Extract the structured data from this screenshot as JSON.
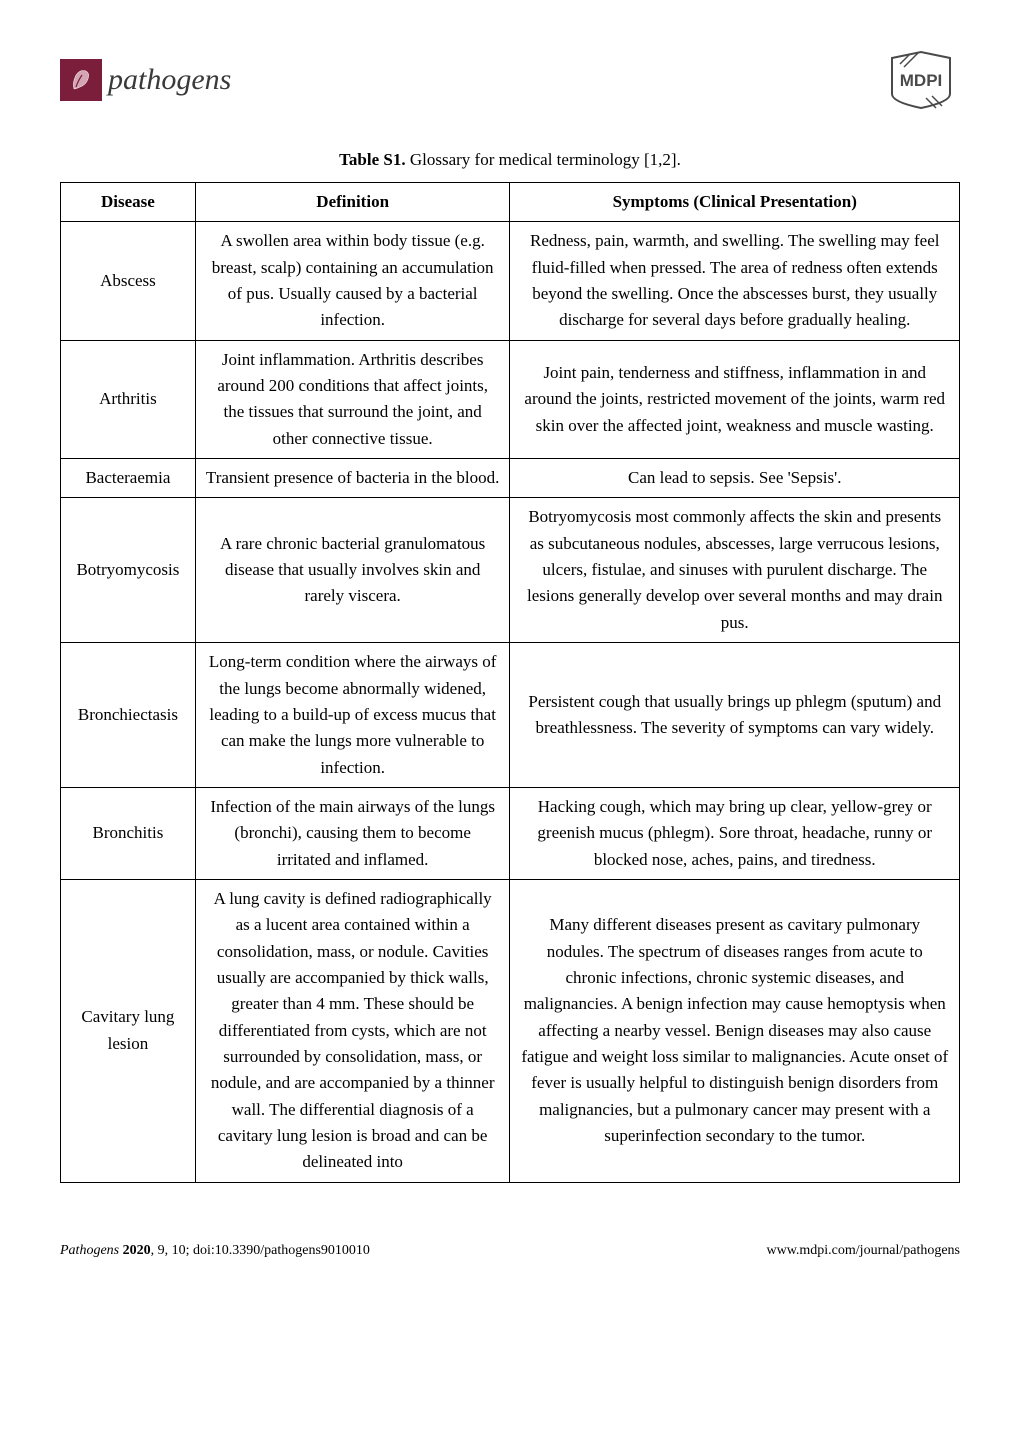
{
  "logos": {
    "left_text": "pathogens",
    "left_bg": "#7a1e3c",
    "left_text_color": "#3a3a3a",
    "right_text": "MDPI",
    "right_color": "#4a4a4a"
  },
  "caption": {
    "bold": "Table S1.",
    "rest": " Glossary for medical terminology [1,2]."
  },
  "table": {
    "headers": [
      "Disease",
      "Definition",
      "Symptoms (Clinical Presentation)"
    ],
    "rows": [
      {
        "disease": "Abscess",
        "definition": "A swollen area within body tissue (e.g. breast, scalp) containing an accumulation of pus. Usually caused by a bacterial infection.",
        "symptoms": "Redness, pain, warmth, and swelling. The swelling may feel fluid-filled when pressed. The area of redness often extends beyond the swelling. Once the abscesses burst, they usually discharge for several days before gradually healing."
      },
      {
        "disease": "Arthritis",
        "definition": "Joint inflammation. Arthritis describes around 200 conditions that affect joints, the tissues that surround the joint, and other connective tissue.",
        "symptoms": "Joint pain, tenderness and stiffness, inflammation in and around the joints, restricted movement of the joints, warm red skin over the affected joint, weakness and muscle wasting."
      },
      {
        "disease": "Bacteraemia",
        "definition": "Transient presence of bacteria in the blood.",
        "symptoms": "Can lead to sepsis. See 'Sepsis'."
      },
      {
        "disease": "Botryomycosis",
        "definition": "A rare chronic bacterial granulomatous disease that usually involves skin and rarely viscera.",
        "symptoms": "Botryomycosis most commonly affects the skin and presents as subcutaneous nodules, abscesses, large verrucous lesions, ulcers, fistulae, and sinuses with purulent discharge. The lesions generally develop over several months and may drain pus."
      },
      {
        "disease": "Bronchiectasis",
        "definition": "Long-term condition where the airways of the lungs become abnormally widened, leading to a build-up of excess mucus that can make the lungs more vulnerable to infection.",
        "symptoms": "Persistent cough that usually brings up phlegm (sputum) and breathlessness. The severity of symptoms can vary widely."
      },
      {
        "disease": "Bronchitis",
        "definition": "Infection of the main airways of the lungs (bronchi), causing them to become irritated and inflamed.",
        "symptoms": "Hacking cough, which may bring up clear, yellow-grey or greenish mucus (phlegm). Sore throat, headache, runny or blocked nose, aches, pains, and tiredness."
      },
      {
        "disease": "Cavitary lung lesion",
        "definition": "A lung cavity is defined radiographically as a lucent area contained within a consolidation, mass, or nodule. Cavities usually are accompanied by thick walls, greater than 4 mm. These should be differentiated from cysts, which are not surrounded by consolidation, mass, or nodule, and are accompanied by a thinner wall. The differential diagnosis of a cavitary lung lesion is broad and can be delineated into",
        "symptoms": "Many different diseases present as cavitary pulmonary nodules. The spectrum of diseases ranges from acute to chronic infections, chronic systemic diseases, and malignancies. A benign infection may cause hemoptysis when affecting a nearby vessel. Benign diseases may also cause fatigue and weight loss similar to malignancies. Acute onset of fever is usually helpful to distinguish benign disorders from malignancies, but a pulmonary cancer may present with a superinfection secondary to the tumor."
      }
    ]
  },
  "footer": {
    "left_italic": "Pathogens ",
    "left_bold": "2020",
    "left_rest": ", 9, 10; doi:10.3390/pathogens9010010",
    "right": "www.mdpi.com/journal/pathogens"
  }
}
